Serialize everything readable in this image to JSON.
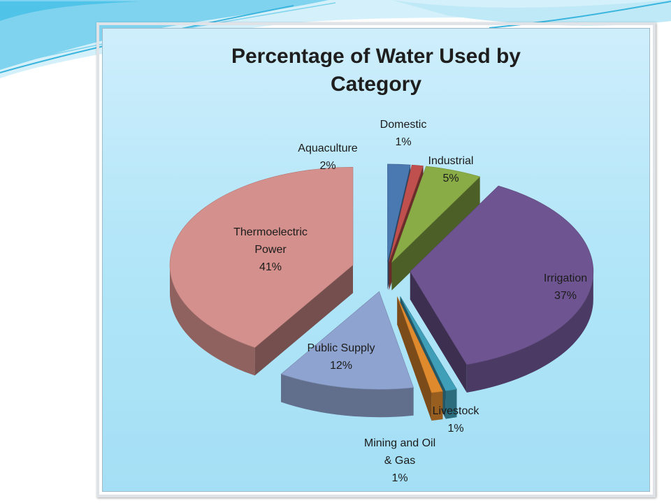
{
  "slide": {
    "accent_color": "#4fc3e8",
    "accent_light": "#bfe9f6"
  },
  "chart_data": {
    "type": "pie",
    "title": "Percentage of Water Used by\nCategory",
    "three_d": true,
    "exploded": true,
    "slices": [
      {
        "label": "Aquaculture",
        "value": 2,
        "display": "2%",
        "color": "#4a78b0"
      },
      {
        "label": "Domestic",
        "value": 1,
        "display": "1%",
        "color": "#c0504d"
      },
      {
        "label": "Industrial",
        "value": 5,
        "display": "5%",
        "color": "#8aac46"
      },
      {
        "label": "Irrigation",
        "value": 37,
        "display": "37%",
        "color": "#6e5591"
      },
      {
        "label": "Livestock",
        "value": 1,
        "display": "1%",
        "color": "#3f9fb8"
      },
      {
        "label": "Mining and Oil\n& Gas",
        "value": 1,
        "display": "1%",
        "color": "#e08a2e"
      },
      {
        "label": "Public Supply",
        "value": 12,
        "display": "12%",
        "color": "#8ea3cf"
      },
      {
        "label": "Thermoelectric\nPower",
        "value": 41,
        "display": "41%",
        "color": "#d4908c"
      }
    ]
  }
}
